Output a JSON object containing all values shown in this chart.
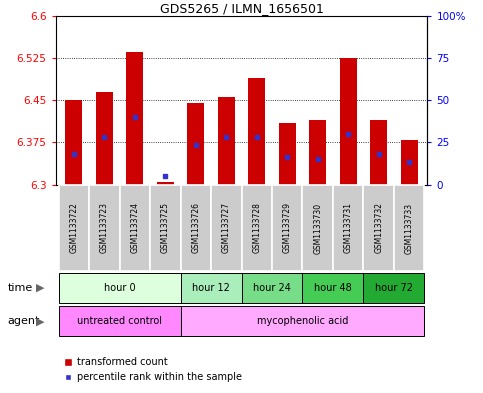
{
  "title": "GDS5265 / ILMN_1656501",
  "samples": [
    "GSM1133722",
    "GSM1133723",
    "GSM1133724",
    "GSM1133725",
    "GSM1133726",
    "GSM1133727",
    "GSM1133728",
    "GSM1133729",
    "GSM1133730",
    "GSM1133731",
    "GSM1133732",
    "GSM1133733"
  ],
  "bar_bottoms": [
    6.3,
    6.3,
    6.3,
    6.3,
    6.3,
    6.3,
    6.3,
    6.3,
    6.3,
    6.3,
    6.3,
    6.3
  ],
  "bar_tops": [
    6.45,
    6.465,
    6.535,
    6.305,
    6.445,
    6.455,
    6.49,
    6.41,
    6.415,
    6.525,
    6.415,
    6.38
  ],
  "percentile_values": [
    6.355,
    6.385,
    6.42,
    6.315,
    6.37,
    6.385,
    6.385,
    6.35,
    6.345,
    6.39,
    6.355,
    6.34
  ],
  "ylim": [
    6.3,
    6.6
  ],
  "yticks_left": [
    6.3,
    6.375,
    6.45,
    6.525,
    6.6
  ],
  "yticks_right": [
    0,
    25,
    50,
    75,
    100
  ],
  "ytick_labels_left": [
    "6.3",
    "6.375",
    "6.45",
    "6.525",
    "6.6"
  ],
  "ytick_labels_right": [
    "0",
    "25",
    "50",
    "75",
    "100%"
  ],
  "bar_color": "#cc0000",
  "percentile_color": "#3333cc",
  "grid_color": "#000000",
  "time_groups": [
    {
      "label": "hour 0",
      "start": 0,
      "end": 4,
      "color": "#ddffdd"
    },
    {
      "label": "hour 12",
      "start": 4,
      "end": 6,
      "color": "#aaeebb"
    },
    {
      "label": "hour 24",
      "start": 6,
      "end": 8,
      "color": "#77dd88"
    },
    {
      "label": "hour 48",
      "start": 8,
      "end": 10,
      "color": "#44cc55"
    },
    {
      "label": "hour 72",
      "start": 10,
      "end": 12,
      "color": "#22aa33"
    }
  ],
  "agent_groups": [
    {
      "label": "untreated control",
      "start": 0,
      "end": 4,
      "color": "#ff88ff"
    },
    {
      "label": "mycophenolic acid",
      "start": 4,
      "end": 12,
      "color": "#ffaaff"
    }
  ],
  "legend_red": "transformed count",
  "legend_blue": "percentile rank within the sample",
  "fig_bg": "#ffffff",
  "plot_bg": "#ffffff",
  "sample_bg": "#cccccc",
  "bar_width": 0.55
}
